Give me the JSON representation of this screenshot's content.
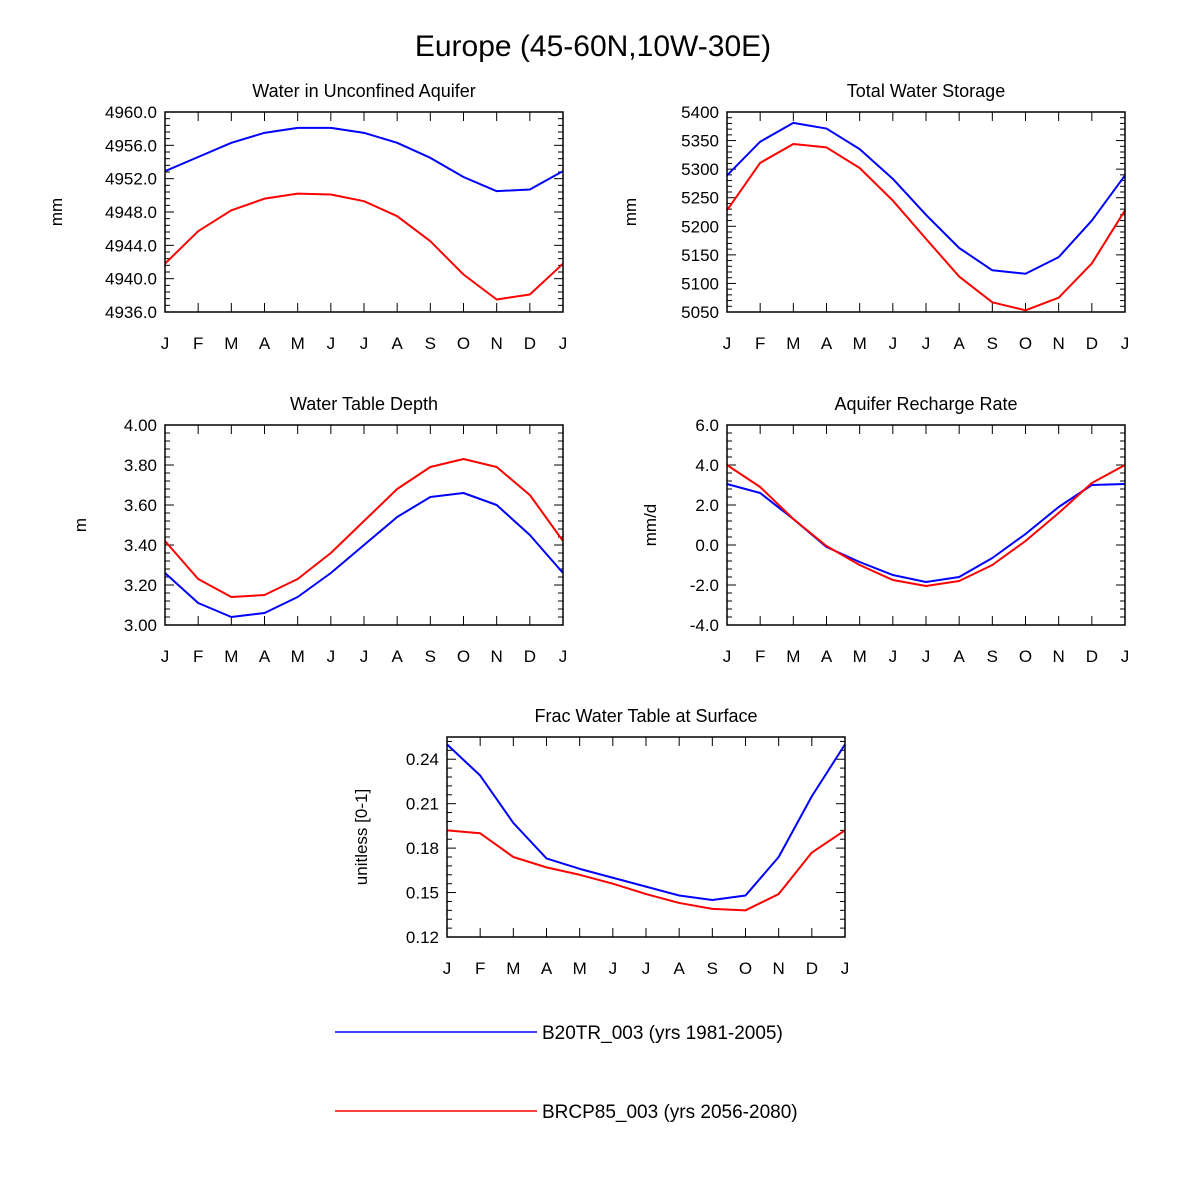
{
  "figure": {
    "title": "Europe (45-60N,10W-30E)"
  },
  "legend": [
    {
      "label": "B20TR_003 (yrs 1981-2005)",
      "color": "#0000ff"
    },
    {
      "label": "BRCP85_003 (yrs 2056-2080)",
      "color": "#ff0000"
    }
  ],
  "chart_data": [
    {
      "type": "line",
      "title": "Water in Unconfined Aquifer",
      "xlabel": "",
      "ylabel": "mm",
      "categories": [
        "J",
        "F",
        "M",
        "A",
        "M",
        "J",
        "J",
        "A",
        "S",
        "O",
        "N",
        "D",
        "J"
      ],
      "ylim": [
        4936.0,
        4960.0
      ],
      "yticks": [
        4936.0,
        4940.0,
        4944.0,
        4948.0,
        4952.0,
        4956.0,
        4960.0
      ],
      "ytick_labels": [
        "4936.0",
        "4940.0",
        "4944.0",
        "4948.0",
        "4952.0",
        "4956.0",
        "4960.0"
      ],
      "series": [
        {
          "name": "B20TR_003 (yrs 1981-2005)",
          "color": "#0000ff",
          "values": [
            4952.9,
            4954.6,
            4956.3,
            4957.5,
            4958.1,
            4958.1,
            4957.5,
            4956.3,
            4954.5,
            4952.2,
            4950.5,
            4950.7,
            4952.9
          ]
        },
        {
          "name": "BRCP85_003 (yrs 2056-2080)",
          "color": "#ff0000",
          "values": [
            4941.8,
            4945.7,
            4948.2,
            4949.6,
            4950.2,
            4950.1,
            4949.3,
            4947.5,
            4944.5,
            4940.5,
            4937.5,
            4938.1,
            4941.8
          ]
        }
      ]
    },
    {
      "type": "line",
      "title": "Total Water Storage",
      "xlabel": "",
      "ylabel": "mm",
      "categories": [
        "J",
        "F",
        "M",
        "A",
        "M",
        "J",
        "J",
        "A",
        "S",
        "O",
        "N",
        "D",
        "J"
      ],
      "ylim": [
        5050,
        5400
      ],
      "yticks": [
        5050,
        5100,
        5150,
        5200,
        5250,
        5300,
        5350,
        5400
      ],
      "ytick_labels": [
        "5050",
        "5100",
        "5150",
        "5200",
        "5250",
        "5300",
        "5350",
        "5400"
      ],
      "series": [
        {
          "name": "B20TR_003 (yrs 1981-2005)",
          "color": "#0000ff",
          "values": [
            5289,
            5348,
            5381,
            5371,
            5335,
            5283,
            5220,
            5162,
            5123,
            5117,
            5146,
            5210,
            5289
          ]
        },
        {
          "name": "BRCP85_003 (yrs 2056-2080)",
          "color": "#ff0000",
          "values": [
            5228,
            5311,
            5344,
            5338,
            5302,
            5245,
            5178,
            5112,
            5067,
            5053,
            5075,
            5135,
            5228
          ]
        }
      ]
    },
    {
      "type": "line",
      "title": "Water Table Depth",
      "xlabel": "",
      "ylabel": "m",
      "categories": [
        "J",
        "F",
        "M",
        "A",
        "M",
        "J",
        "J",
        "A",
        "S",
        "O",
        "N",
        "D",
        "J"
      ],
      "ylim": [
        3.0,
        4.0
      ],
      "yticks": [
        3.0,
        3.2,
        3.4,
        3.6,
        3.8,
        4.0
      ],
      "ytick_labels": [
        "3.00",
        "3.20",
        "3.40",
        "3.60",
        "3.80",
        "4.00"
      ],
      "series": [
        {
          "name": "B20TR_003 (yrs 1981-2005)",
          "color": "#0000ff",
          "values": [
            3.26,
            3.11,
            3.04,
            3.06,
            3.14,
            3.26,
            3.4,
            3.54,
            3.64,
            3.66,
            3.6,
            3.45,
            3.26
          ]
        },
        {
          "name": "BRCP85_003 (yrs 2056-2080)",
          "color": "#ff0000",
          "values": [
            3.42,
            3.23,
            3.14,
            3.15,
            3.23,
            3.36,
            3.52,
            3.68,
            3.79,
            3.83,
            3.79,
            3.65,
            3.42
          ]
        }
      ]
    },
    {
      "type": "line",
      "title": "Aquifer Recharge Rate",
      "xlabel": "",
      "ylabel": "mm/d",
      "categories": [
        "J",
        "F",
        "M",
        "A",
        "M",
        "J",
        "J",
        "A",
        "S",
        "O",
        "N",
        "D",
        "J"
      ],
      "ylim": [
        -4.0,
        6.0
      ],
      "yticks": [
        -4.0,
        -2.0,
        0.0,
        2.0,
        4.0,
        6.0
      ],
      "ytick_labels": [
        "-4.0",
        "-2.0",
        "0.0",
        "2.0",
        "4.0",
        "6.0"
      ],
      "series": [
        {
          "name": "B20TR_003 (yrs 1981-2005)",
          "color": "#0000ff",
          "values": [
            3.05,
            2.6,
            1.3,
            -0.1,
            -0.85,
            -1.5,
            -1.85,
            -1.6,
            -0.65,
            0.55,
            1.9,
            3.0,
            3.05
          ]
        },
        {
          "name": "BRCP85_003 (yrs 2056-2080)",
          "color": "#ff0000",
          "values": [
            4.0,
            2.9,
            1.3,
            -0.05,
            -1.0,
            -1.75,
            -2.05,
            -1.8,
            -1.0,
            0.2,
            1.6,
            3.1,
            4.0
          ]
        }
      ]
    },
    {
      "type": "line",
      "title": "Frac Water Table at Surface",
      "xlabel": "",
      "ylabel": "unitless [0-1]",
      "categories": [
        "J",
        "F",
        "M",
        "A",
        "M",
        "J",
        "J",
        "A",
        "S",
        "O",
        "N",
        "D",
        "J"
      ],
      "ylim": [
        0.12,
        0.255
      ],
      "yticks": [
        0.12,
        0.15,
        0.18,
        0.21,
        0.24
      ],
      "ytick_labels": [
        "0.12",
        "0.15",
        "0.18",
        "0.21",
        "0.24"
      ],
      "series": [
        {
          "name": "B20TR_003 (yrs 1981-2005)",
          "color": "#0000ff",
          "values": [
            0.25,
            0.229,
            0.197,
            0.173,
            0.166,
            0.16,
            0.154,
            0.148,
            0.145,
            0.148,
            0.174,
            0.215,
            0.25
          ]
        },
        {
          "name": "BRCP85_003 (yrs 2056-2080)",
          "color": "#ff0000",
          "values": [
            0.192,
            0.19,
            0.174,
            0.167,
            0.162,
            0.156,
            0.149,
            0.143,
            0.139,
            0.138,
            0.149,
            0.177,
            0.192
          ]
        }
      ]
    }
  ]
}
